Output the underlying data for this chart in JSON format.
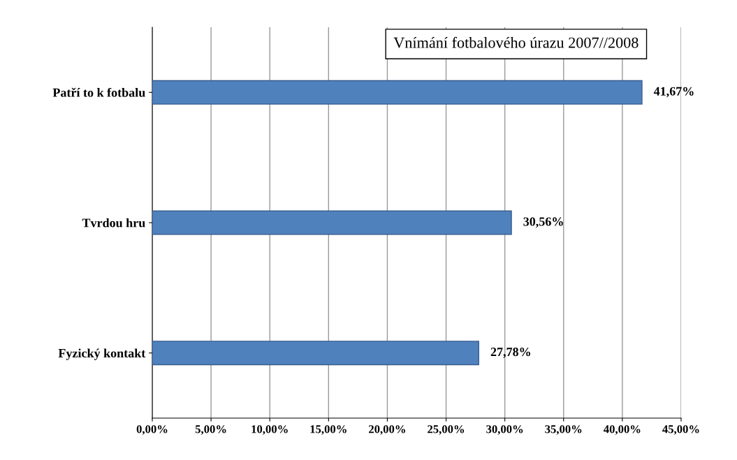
{
  "chart_data": {
    "type": "bar",
    "orientation": "horizontal",
    "title": "Vnímání fotbalového úrazu 2007//2008",
    "categories": [
      "Patří to k fotbalu",
      "Tvrdou hru",
      "Fyzický kontakt"
    ],
    "values": [
      41.67,
      30.56,
      27.78
    ],
    "color": "#4f81bd",
    "value_labels": [
      "41,67%",
      "30,56%",
      "27,78%"
    ],
    "xlim": [
      0,
      45
    ],
    "xticks": [
      {
        "value": 0,
        "label": "0,00%"
      },
      {
        "value": 5,
        "label": "5,00%"
      },
      {
        "value": 10,
        "label": "10,00%"
      },
      {
        "value": 15,
        "label": "15,00%"
      },
      {
        "value": 20,
        "label": "20,00%"
      },
      {
        "value": 25,
        "label": "25,00%"
      },
      {
        "value": 30,
        "label": "30,00%"
      },
      {
        "value": 35,
        "label": "35,00%"
      },
      {
        "value": 40,
        "label": "40,00%"
      },
      {
        "value": 45,
        "label": "45,00%"
      }
    ],
    "grid": "x",
    "legend": false
  }
}
